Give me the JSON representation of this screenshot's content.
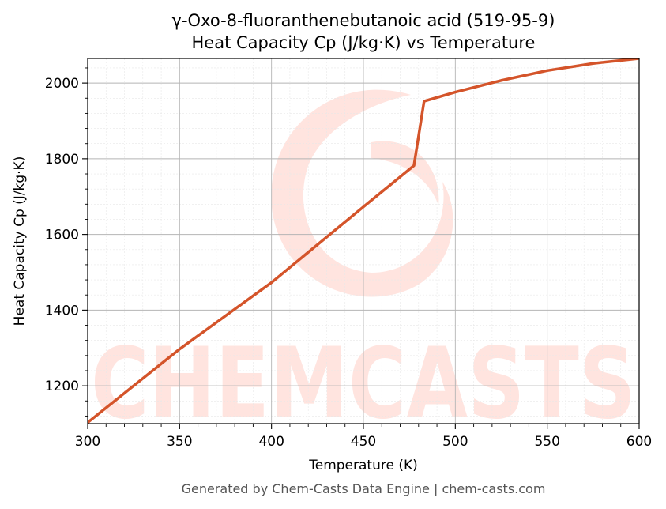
{
  "chart_data": {
    "type": "line",
    "title": "γ-Oxo-8-fluoranthenebutanoic acid (519-95-9)",
    "subtitle": "Heat Capacity Cp (J/kg·K) vs Temperature",
    "xlabel": "Temperature (K)",
    "ylabel": "Heat Capacity Cp (J/kg·K)",
    "xlim": [
      300,
      600
    ],
    "ylim": [
      1100,
      2065
    ],
    "x_ticks": [
      300,
      350,
      400,
      450,
      500,
      550,
      600
    ],
    "y_ticks": [
      1200,
      1400,
      1600,
      1800,
      2000
    ],
    "grid": true,
    "line_color": "#d4542a",
    "series": [
      {
        "x": [
          300,
          350,
          400,
          450,
          477.5,
          483,
          500,
          525,
          550,
          575,
          600
        ],
        "values": [
          1103,
          1297,
          1473,
          1673,
          1782,
          1952,
          1976,
          2007,
          2033,
          2052,
          2065
        ]
      }
    ]
  },
  "watermark": {
    "text": "CHEMCASTS",
    "color": "#ffe4df"
  },
  "footer": "Generated by Chem-Casts Data Engine | chem-casts.com"
}
